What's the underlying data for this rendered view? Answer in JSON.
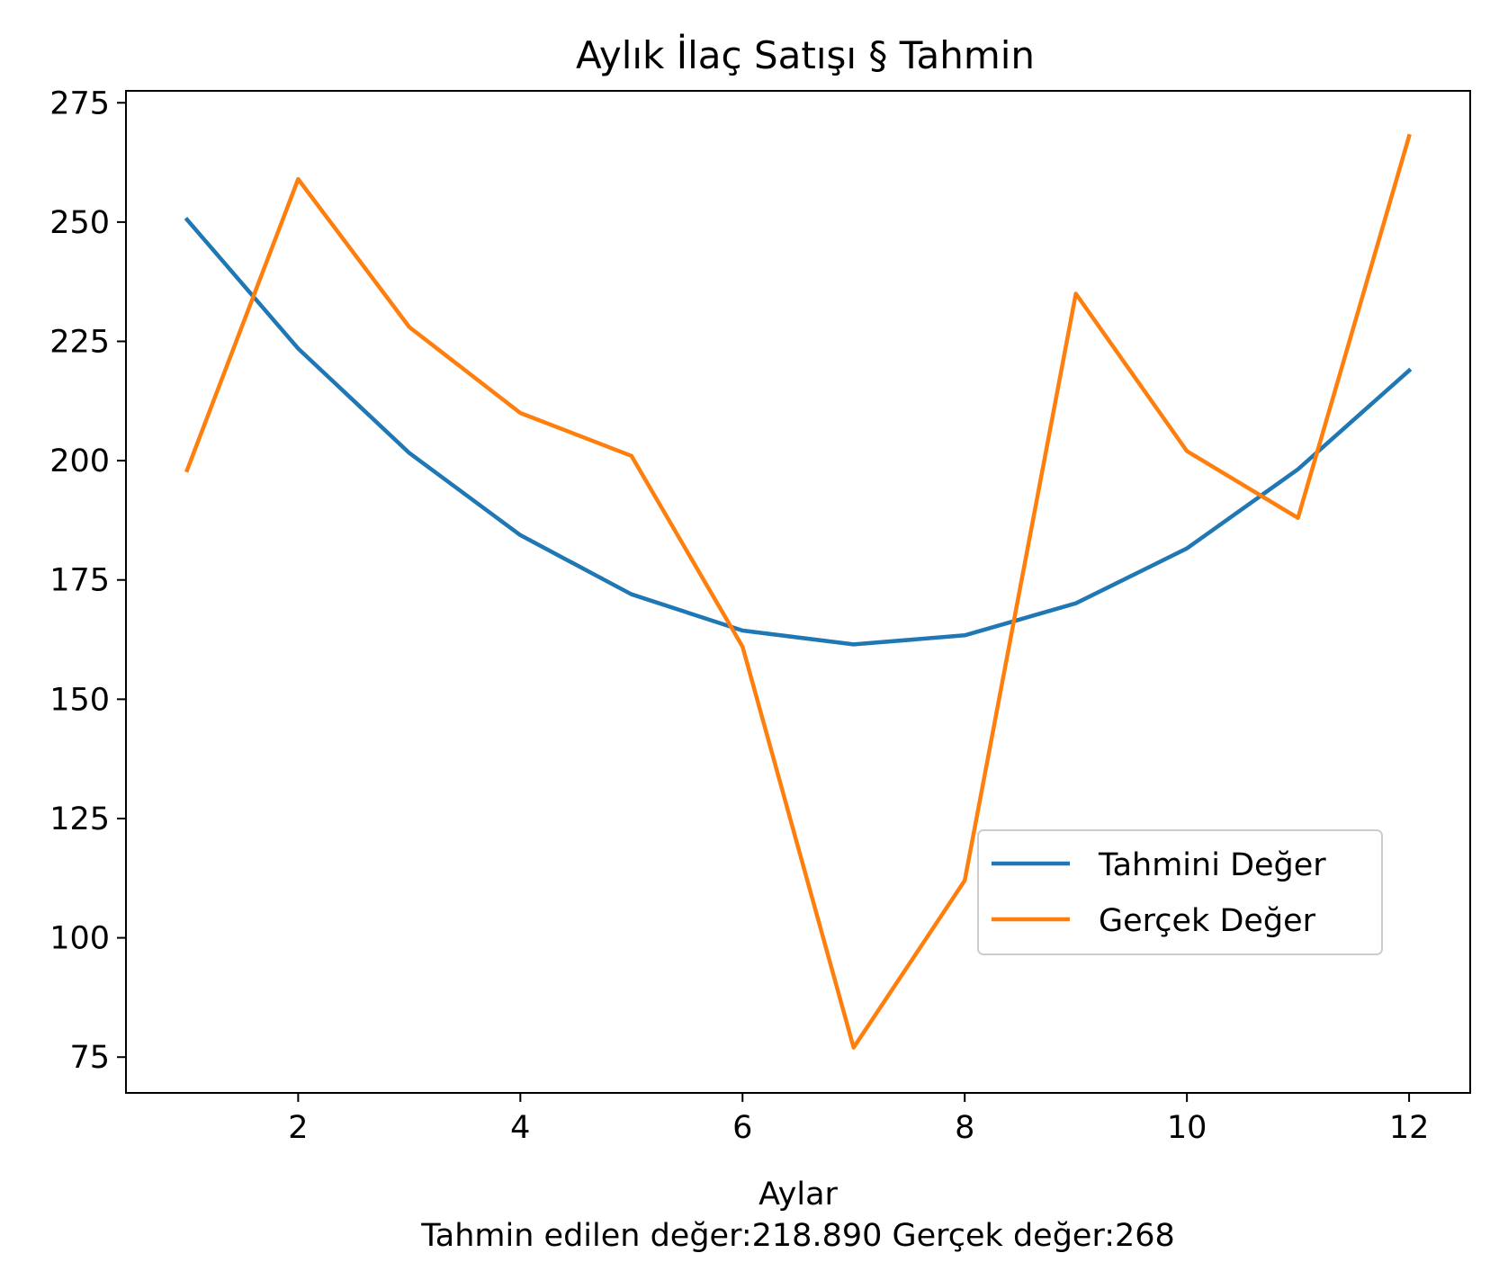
{
  "chart_data": {
    "type": "line",
    "title": "Aylık İlaç Satışı § Tahmin",
    "xlabel": "Aylar\nTahmin edilen değer:218.890 Gerçek değer:268",
    "xlabel_lines": [
      "Aylar",
      "Tahmin edilen değer:218.890 Gerçek değer:268"
    ],
    "ylabel": "",
    "x": [
      1,
      2,
      3,
      4,
      5,
      6,
      7,
      8,
      9,
      10,
      11,
      12
    ],
    "xlim": [
      0.45,
      12.55
    ],
    "ylim": [
      67.5,
      277.5
    ],
    "xticks": [
      2,
      4,
      6,
      8,
      10,
      12
    ],
    "yticks": [
      75,
      100,
      125,
      150,
      175,
      200,
      225,
      250,
      275
    ],
    "grid": false,
    "legend_position": "lower-right",
    "series": [
      {
        "name": "Tahmini Değer",
        "color": "#1f77b4",
        "values": [
          250.5,
          223.5,
          201.6,
          184.4,
          172.0,
          164.4,
          161.5,
          163.4,
          170.1,
          181.6,
          198.2,
          218.89
        ]
      },
      {
        "name": "Gerçek Değer",
        "color": "#ff7f0e",
        "values": [
          198,
          259,
          228,
          210,
          201,
          161,
          77,
          112,
          235,
          202,
          188,
          268
        ]
      }
    ]
  }
}
